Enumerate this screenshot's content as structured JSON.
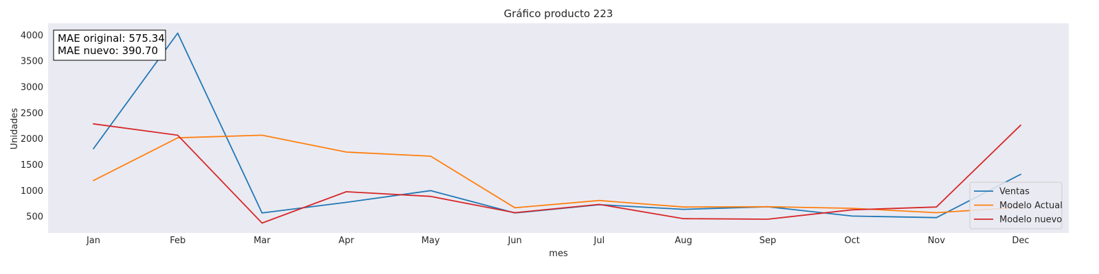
{
  "chart_data": {
    "type": "line",
    "title": "Gráfico producto 223",
    "xlabel": "mes",
    "ylabel": "Unidades",
    "categories": [
      "Jan",
      "Feb",
      "Mar",
      "Apr",
      "May",
      "Jun",
      "Jul",
      "Aug",
      "Sep",
      "Oct",
      "Nov",
      "Dec"
    ],
    "ylim": [
      185,
      4230
    ],
    "yticks": [
      500,
      1000,
      1500,
      2000,
      2500,
      3000,
      3500,
      4000
    ],
    "grid": false,
    "legend_position": "lower-right",
    "series": [
      {
        "name": "Ventas",
        "color": "#1f77b4",
        "values": [
          1810,
          4040,
          570,
          775,
          1000,
          570,
          730,
          640,
          690,
          510,
          480,
          1315
        ]
      },
      {
        "name": "Modelo Actual",
        "color": "#ff7f0e",
        "values": [
          1195,
          2020,
          2070,
          1745,
          1665,
          670,
          810,
          685,
          690,
          660,
          575,
          680
        ]
      },
      {
        "name": "Modelo nuevo",
        "color": "#d62728",
        "values": [
          2290,
          2070,
          375,
          980,
          890,
          575,
          735,
          460,
          450,
          630,
          685,
          2265
        ]
      }
    ],
    "annotation": {
      "line1": "MAE original: 575.34",
      "line2": "MAE nuevo: 390.70"
    }
  }
}
